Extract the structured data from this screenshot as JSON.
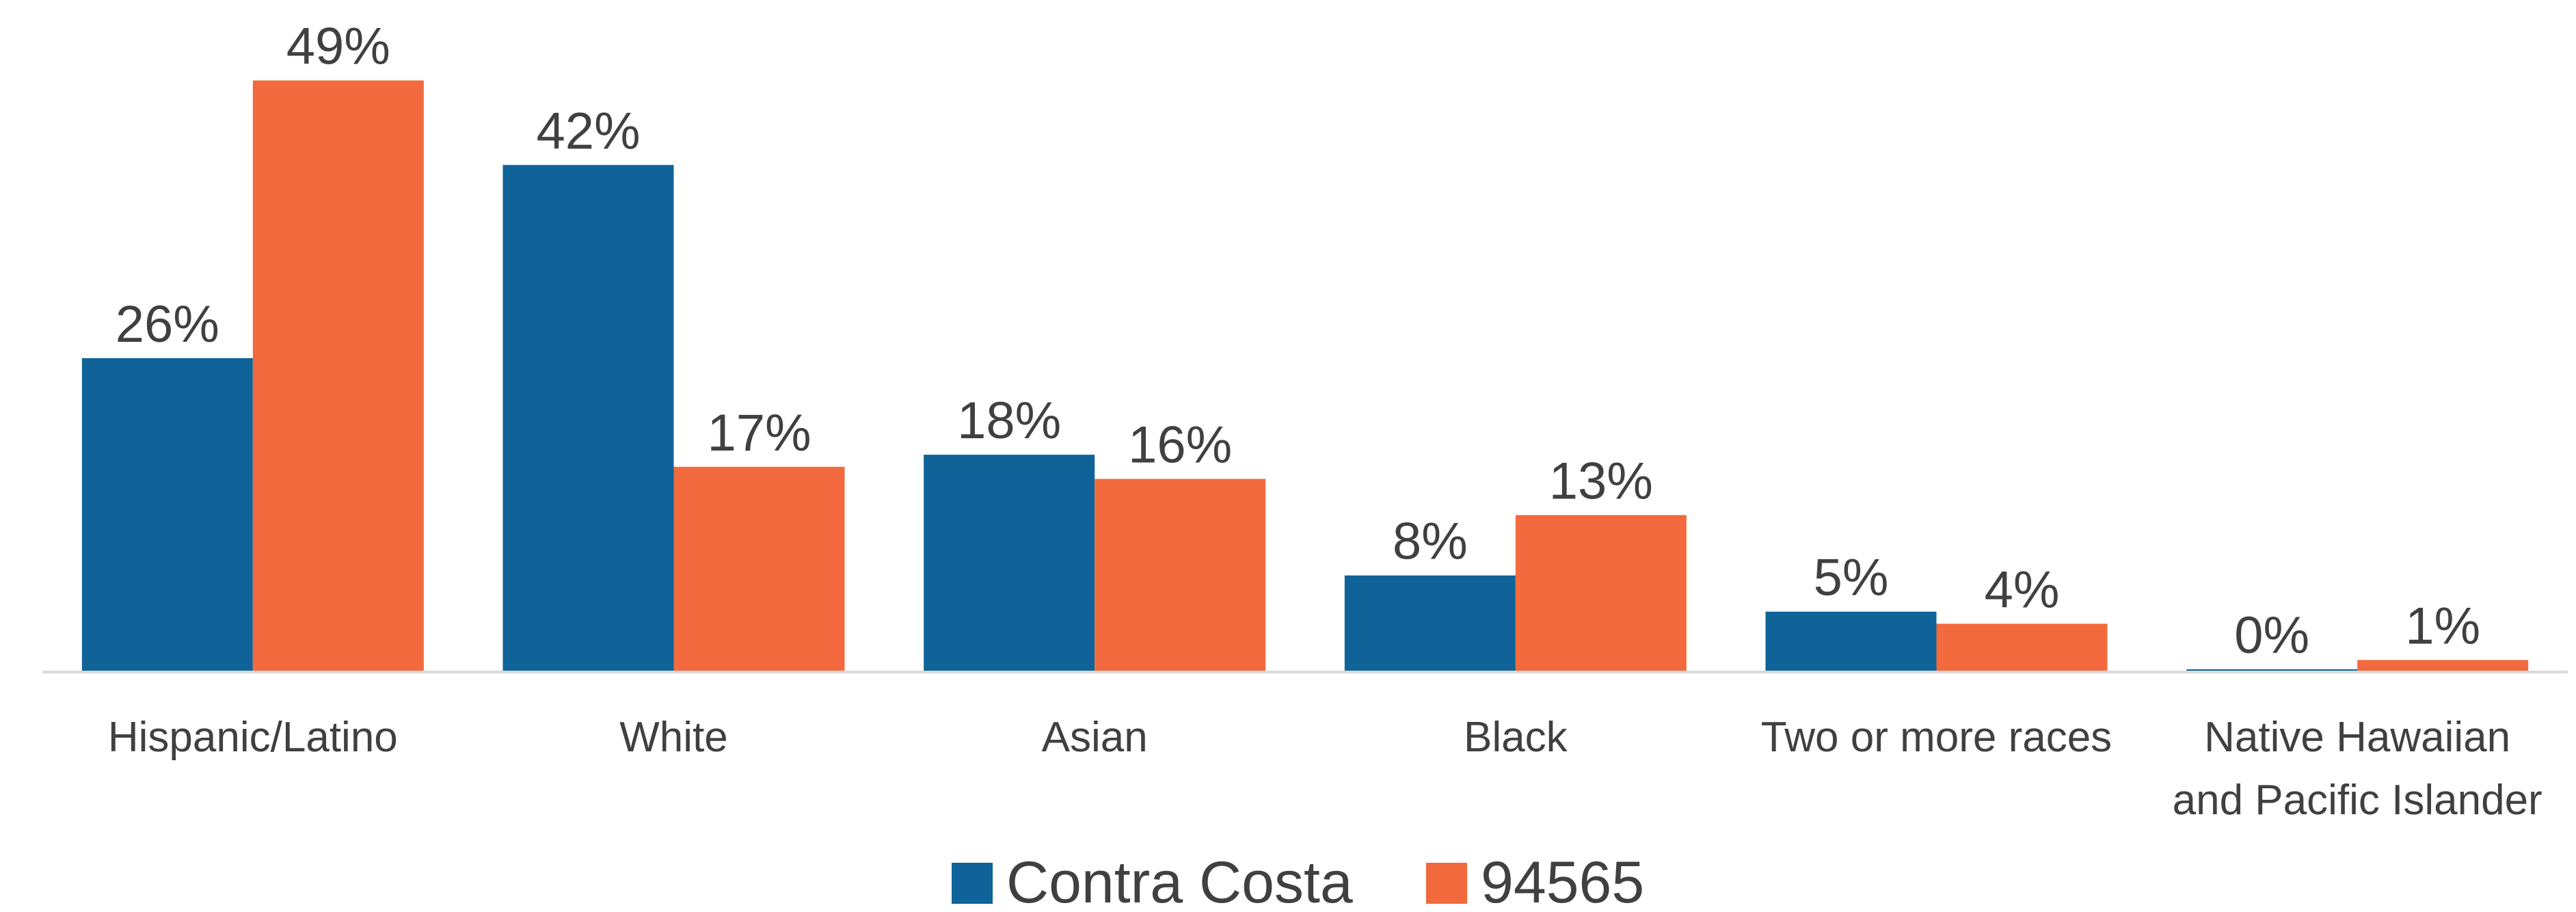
{
  "chart_data": {
    "type": "bar",
    "categories": [
      [
        "Hispanic/Latino"
      ],
      [
        "White"
      ],
      [
        "Asian"
      ],
      [
        "Black"
      ],
      [
        "Two or more races"
      ],
      [
        "Native Hawaiian",
        "and Pacific Islander"
      ]
    ],
    "series": [
      {
        "name": "Contra Costa",
        "color": "#0F6399",
        "values": [
          26,
          42,
          18,
          8,
          5,
          0
        ],
        "labels": [
          "26%",
          "42%",
          "18%",
          "8%",
          "5%",
          "0%"
        ]
      },
      {
        "name": "94565",
        "color": "#F26A3D",
        "values": [
          49,
          17,
          16,
          13,
          4,
          1
        ],
        "labels": [
          "49%",
          "17%",
          "16%",
          "13%",
          "4%",
          "1%"
        ]
      }
    ],
    "ylim": [
      0,
      50
    ],
    "grid": false,
    "legend_position": "bottom"
  }
}
